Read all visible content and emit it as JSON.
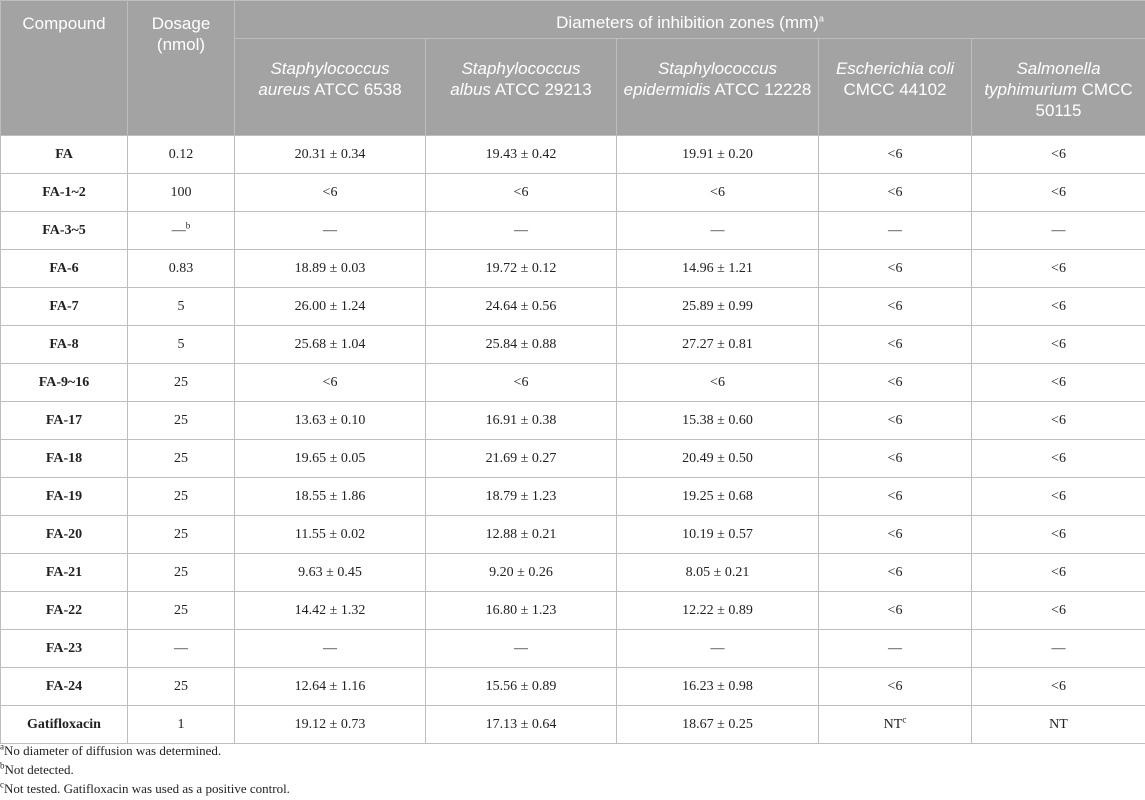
{
  "header": {
    "compound": "Compound",
    "dosage_line1": "Dosage",
    "dosage_line2": "(nmol)",
    "span_title": "Diameters of inhibition zones (mm)",
    "span_sup": "a",
    "organisms": [
      {
        "italic": "Staphylococcus",
        "italic2": "aureus",
        "rest": "ATCC 6538"
      },
      {
        "italic": "Staphylococcus",
        "italic2": "albus",
        "rest": "ATCC 29213"
      },
      {
        "italic": "Staphylococcus",
        "italic2": "epidermidis",
        "rest": "ATCC 12228"
      },
      {
        "italic": "Escherichia coli",
        "italic2": "",
        "rest": "CMCC 44102"
      },
      {
        "italic": "Salmonella",
        "italic2": "typhimurium",
        "rest": "CMCC 50115"
      }
    ]
  },
  "rows": [
    {
      "compound": "FA",
      "dosage": "0.12",
      "dosage_sup": "",
      "v": [
        "20.31 ± 0.34",
        "19.43 ± 0.42",
        "19.91 ± 0.20",
        "<6",
        "<6"
      ],
      "sups": [
        "",
        "",
        "",
        "",
        ""
      ]
    },
    {
      "compound": "FA-1~2",
      "dosage": "100",
      "dosage_sup": "",
      "v": [
        "<6",
        "<6",
        "<6",
        "<6",
        "<6"
      ],
      "sups": [
        "",
        "",
        "",
        "",
        ""
      ]
    },
    {
      "compound": "FA-3~5",
      "dosage": "—",
      "dosage_sup": "b",
      "v": [
        "—",
        "—",
        "—",
        "—",
        "—"
      ],
      "sups": [
        "",
        "",
        "",
        "",
        ""
      ]
    },
    {
      "compound": "FA-6",
      "dosage": "0.83",
      "dosage_sup": "",
      "v": [
        "18.89 ± 0.03",
        "19.72 ± 0.12",
        "14.96 ± 1.21",
        "<6",
        "<6"
      ],
      "sups": [
        "",
        "",
        "",
        "",
        ""
      ]
    },
    {
      "compound": "FA-7",
      "dosage": "5",
      "dosage_sup": "",
      "v": [
        "26.00 ± 1.24",
        "24.64 ± 0.56",
        "25.89 ± 0.99",
        "<6",
        "<6"
      ],
      "sups": [
        "",
        "",
        "",
        "",
        ""
      ]
    },
    {
      "compound": "FA-8",
      "dosage": "5",
      "dosage_sup": "",
      "v": [
        "25.68 ± 1.04",
        "25.84 ± 0.88",
        "27.27 ± 0.81",
        "<6",
        "<6"
      ],
      "sups": [
        "",
        "",
        "",
        "",
        ""
      ]
    },
    {
      "compound": "FA-9~16",
      "dosage": "25",
      "dosage_sup": "",
      "v": [
        "<6",
        "<6",
        "<6",
        "<6",
        "<6"
      ],
      "sups": [
        "",
        "",
        "",
        "",
        ""
      ]
    },
    {
      "compound": "FA-17",
      "dosage": "25",
      "dosage_sup": "",
      "v": [
        "13.63 ± 0.10",
        "16.91 ± 0.38",
        "15.38 ± 0.60",
        "<6",
        "<6"
      ],
      "sups": [
        "",
        "",
        "",
        "",
        ""
      ]
    },
    {
      "compound": "FA-18",
      "dosage": "25",
      "dosage_sup": "",
      "v": [
        "19.65 ± 0.05",
        "21.69 ± 0.27",
        "20.49 ± 0.50",
        "<6",
        "<6"
      ],
      "sups": [
        "",
        "",
        "",
        "",
        ""
      ]
    },
    {
      "compound": "FA-19",
      "dosage": "25",
      "dosage_sup": "",
      "v": [
        "18.55 ± 1.86",
        "18.79 ± 1.23",
        "19.25 ± 0.68",
        "<6",
        "<6"
      ],
      "sups": [
        "",
        "",
        "",
        "",
        ""
      ]
    },
    {
      "compound": "FA-20",
      "dosage": "25",
      "dosage_sup": "",
      "v": [
        "11.55 ± 0.02",
        "12.88 ± 0.21",
        "10.19 ± 0.57",
        "<6",
        "<6"
      ],
      "sups": [
        "",
        "",
        "",
        "",
        ""
      ]
    },
    {
      "compound": "FA-21",
      "dosage": "25",
      "dosage_sup": "",
      "v": [
        "9.63 ± 0.45",
        "9.20 ± 0.26",
        "8.05 ± 0.21",
        "<6",
        "<6"
      ],
      "sups": [
        "",
        "",
        "",
        "",
        ""
      ]
    },
    {
      "compound": "FA-22",
      "dosage": "25",
      "dosage_sup": "",
      "v": [
        "14.42 ± 1.32",
        "16.80 ± 1.23",
        "12.22 ± 0.89",
        "<6",
        "<6"
      ],
      "sups": [
        "",
        "",
        "",
        "",
        ""
      ]
    },
    {
      "compound": "FA-23",
      "dosage": "—",
      "dosage_sup": "",
      "v": [
        "—",
        "—",
        "—",
        "—",
        "—"
      ],
      "sups": [
        "",
        "",
        "",
        "",
        ""
      ]
    },
    {
      "compound": "FA-24",
      "dosage": "25",
      "dosage_sup": "",
      "v": [
        "12.64 ± 1.16",
        "15.56 ± 0.89",
        "16.23 ± 0.98",
        "<6",
        "<6"
      ],
      "sups": [
        "",
        "",
        "",
        "",
        ""
      ]
    },
    {
      "compound": "Gatifloxacin",
      "dosage": "1",
      "dosage_sup": "",
      "v": [
        "19.12 ± 0.73",
        "17.13 ± 0.64",
        "18.67 ± 0.25",
        "NT",
        "NT"
      ],
      "sups": [
        "",
        "",
        "",
        "c",
        ""
      ]
    }
  ],
  "footnotes": [
    {
      "sup": "a",
      "text": "No diameter of diffusion was determined."
    },
    {
      "sup": "b",
      "text": "Not detected."
    },
    {
      "sup": "c",
      "text": "Not tested. Gatifloxacin was used as a positive control."
    }
  ]
}
